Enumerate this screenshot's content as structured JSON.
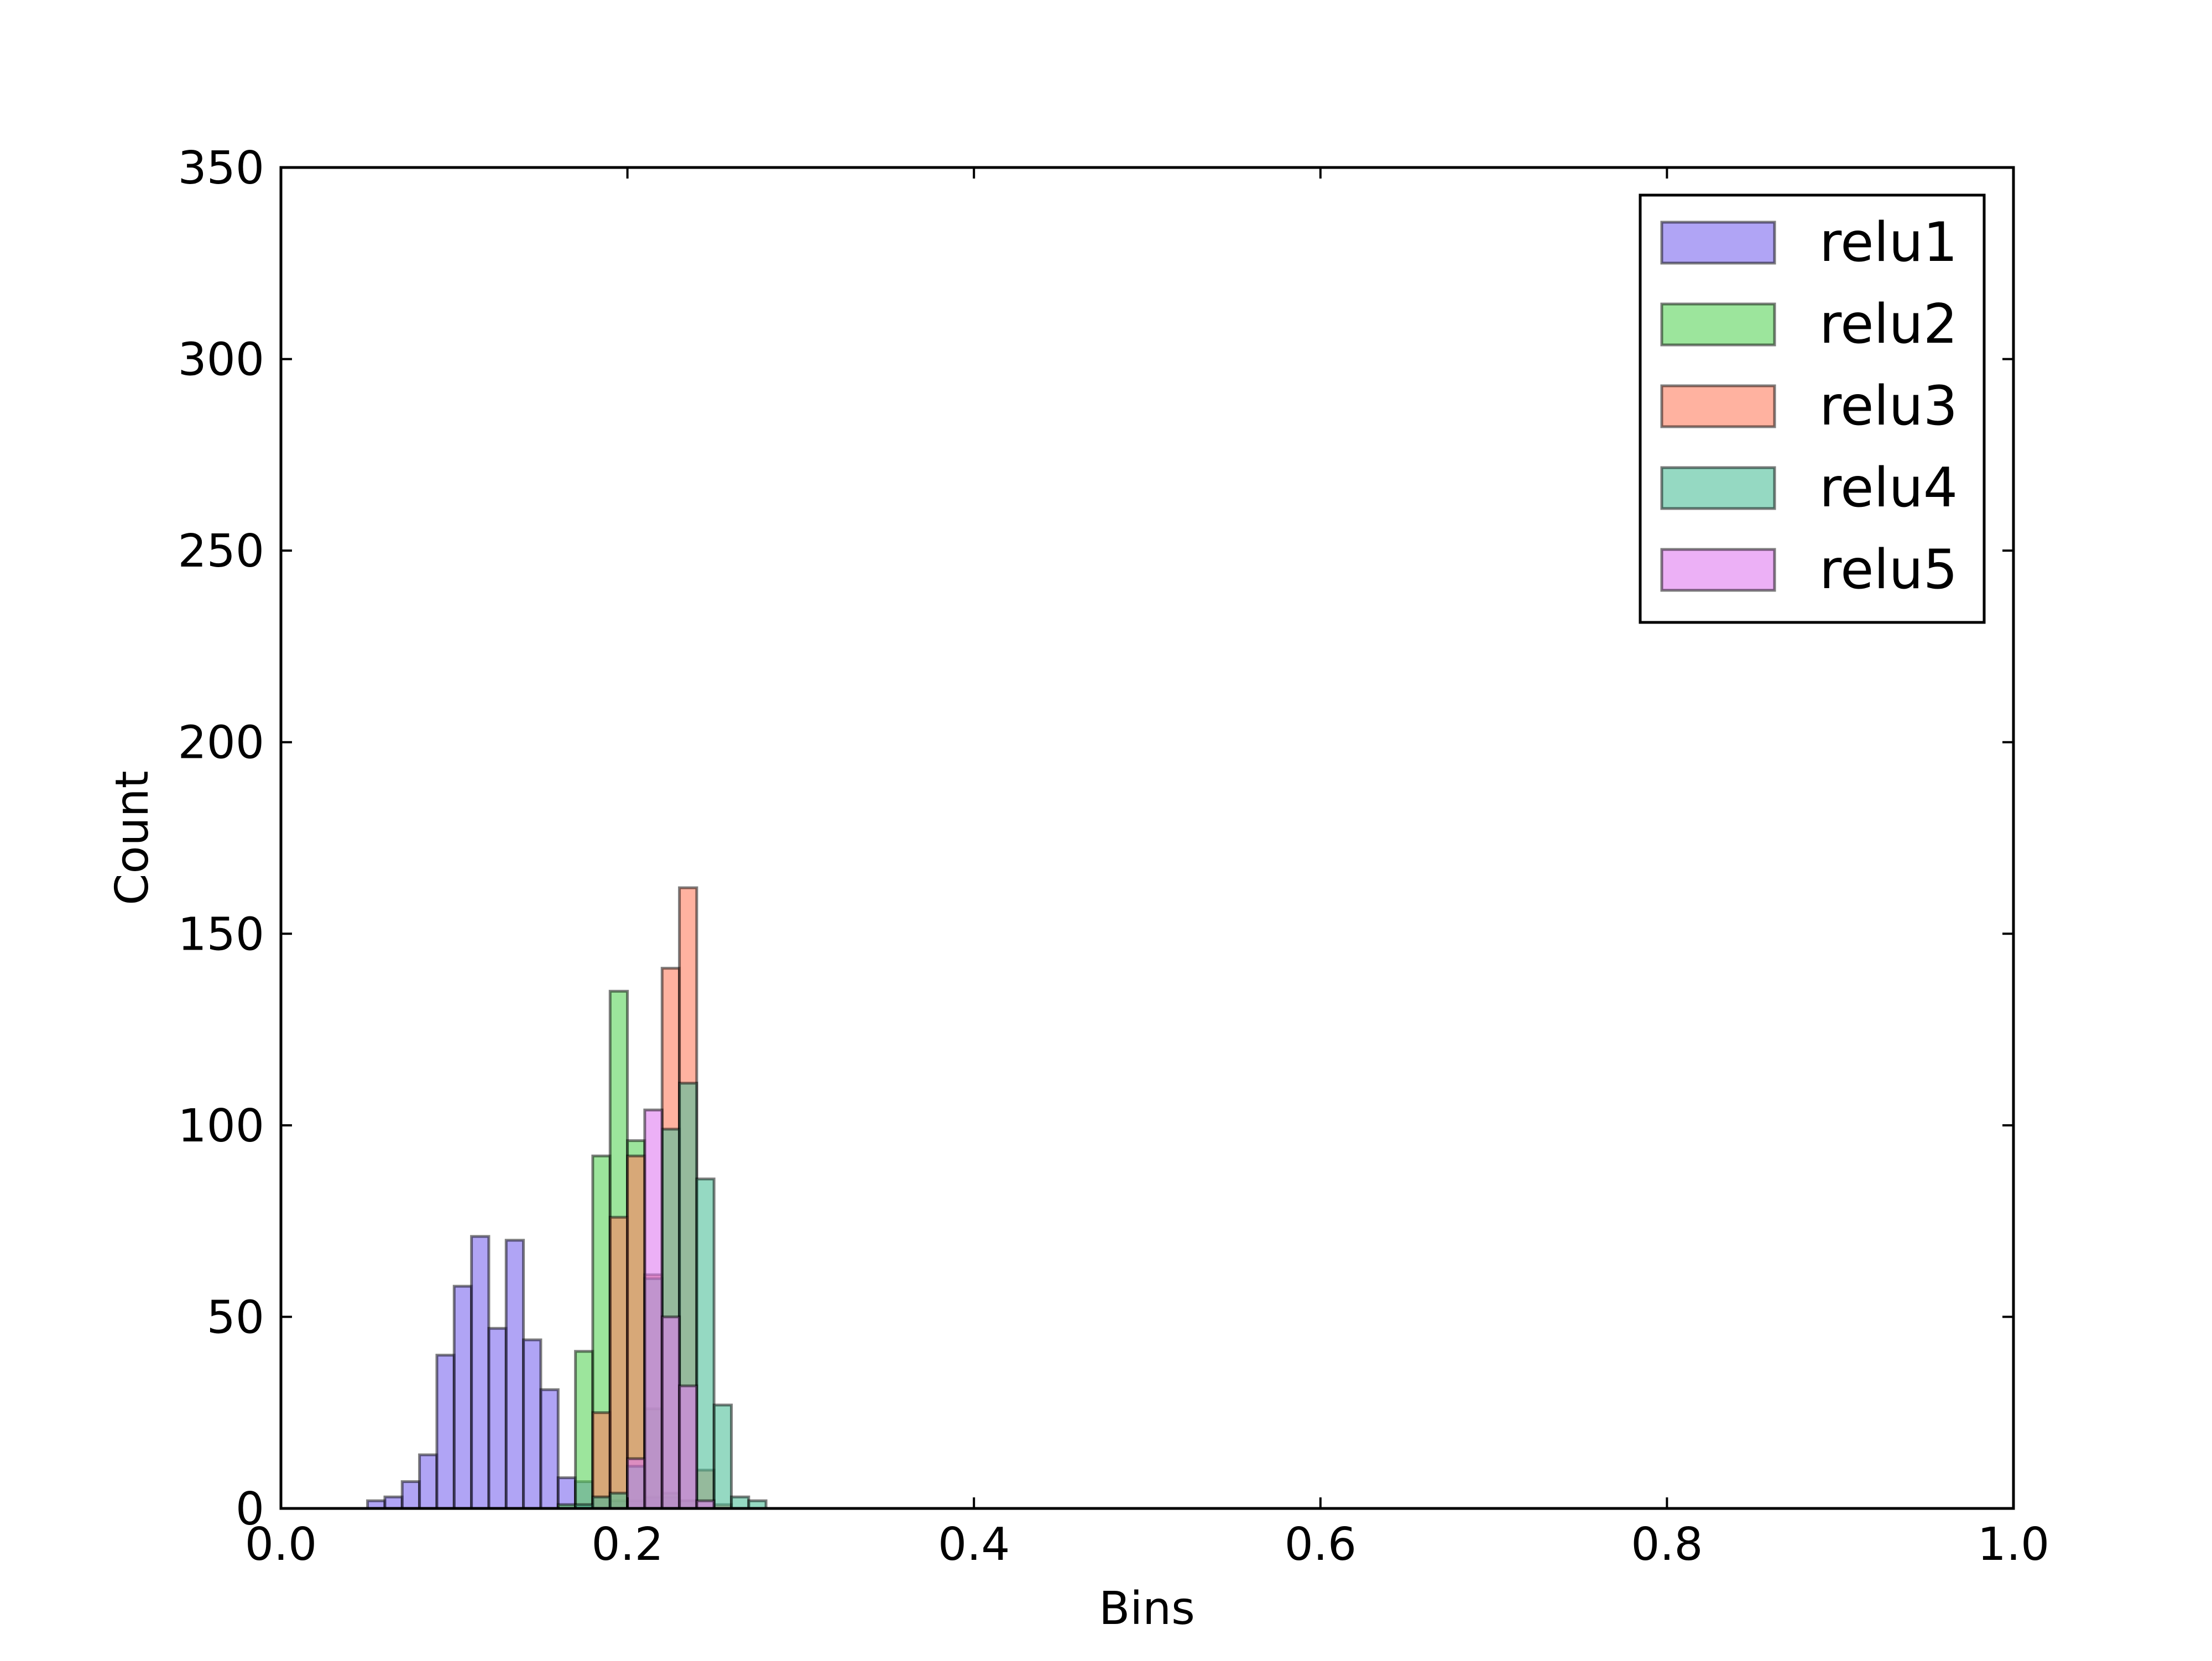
{
  "chart_data": {
    "type": "histogram",
    "title": "",
    "xlabel": "Bins",
    "ylabel": "Count",
    "xlim": [
      0.0,
      1.0
    ],
    "ylim": [
      0,
      350
    ],
    "x_ticks": [
      0.0,
      0.2,
      0.4,
      0.6,
      0.8,
      1.0
    ],
    "x_tick_labels": [
      "0.0",
      "0.2",
      "0.4",
      "0.6",
      "0.8",
      "1.0"
    ],
    "y_ticks": [
      0,
      50,
      100,
      150,
      200,
      250,
      300,
      350
    ],
    "y_tick_labels": [
      "0",
      "50",
      "100",
      "150",
      "200",
      "250",
      "300",
      "350"
    ],
    "grid": false,
    "legend_position": "top-right",
    "bin_width": 0.01,
    "series": [
      {
        "name": "relu1",
        "color": "#7b68ee",
        "bins": [
          {
            "x": 0.05,
            "count": 2
          },
          {
            "x": 0.06,
            "count": 3
          },
          {
            "x": 0.07,
            "count": 7
          },
          {
            "x": 0.08,
            "count": 14
          },
          {
            "x": 0.09,
            "count": 40
          },
          {
            "x": 0.1,
            "count": 58
          },
          {
            "x": 0.11,
            "count": 71
          },
          {
            "x": 0.12,
            "count": 47
          },
          {
            "x": 0.13,
            "count": 70
          },
          {
            "x": 0.14,
            "count": 44
          },
          {
            "x": 0.15,
            "count": 31
          },
          {
            "x": 0.16,
            "count": 8
          },
          {
            "x": 0.17,
            "count": 7
          },
          {
            "x": 0.18,
            "count": 3
          },
          {
            "x": 0.19,
            "count": 2
          },
          {
            "x": 0.2,
            "count": 2
          },
          {
            "x": 0.21,
            "count": 3
          },
          {
            "x": 0.22,
            "count": 3
          },
          {
            "x": 0.23,
            "count": 2
          }
        ]
      },
      {
        "name": "relu2",
        "color": "#5ad35a",
        "bins": [
          {
            "x": 0.16,
            "count": 1
          },
          {
            "x": 0.17,
            "count": 41
          },
          {
            "x": 0.18,
            "count": 92
          },
          {
            "x": 0.19,
            "count": 135
          },
          {
            "x": 0.2,
            "count": 96
          },
          {
            "x": 0.21,
            "count": 26
          },
          {
            "x": 0.22,
            "count": 4
          },
          {
            "x": 0.23,
            "count": 2
          }
        ]
      },
      {
        "name": "relu3",
        "color": "#ff7f60",
        "bins": [
          {
            "x": 0.18,
            "count": 25
          },
          {
            "x": 0.19,
            "count": 76
          },
          {
            "x": 0.2,
            "count": 92
          },
          {
            "x": 0.21,
            "count": 61
          },
          {
            "x": 0.22,
            "count": 141
          },
          {
            "x": 0.23,
            "count": 162
          },
          {
            "x": 0.24,
            "count": 10
          },
          {
            "x": 0.25,
            "count": 1
          }
        ]
      },
      {
        "name": "relu4",
        "color": "#4fbf9a",
        "bins": [
          {
            "x": 0.17,
            "count": 1
          },
          {
            "x": 0.18,
            "count": 3
          },
          {
            "x": 0.19,
            "count": 4
          },
          {
            "x": 0.2,
            "count": 11
          },
          {
            "x": 0.21,
            "count": 60
          },
          {
            "x": 0.22,
            "count": 99
          },
          {
            "x": 0.23,
            "count": 111
          },
          {
            "x": 0.24,
            "count": 86
          },
          {
            "x": 0.25,
            "count": 27
          },
          {
            "x": 0.26,
            "count": 3
          },
          {
            "x": 0.27,
            "count": 2
          }
        ]
      },
      {
        "name": "relu5",
        "color": "#e07cf0",
        "bins": [
          {
            "x": 0.2,
            "count": 13
          },
          {
            "x": 0.21,
            "count": 104
          },
          {
            "x": 0.22,
            "count": 50
          },
          {
            "x": 0.23,
            "count": 32
          },
          {
            "x": 0.24,
            "count": 2
          }
        ]
      }
    ]
  }
}
